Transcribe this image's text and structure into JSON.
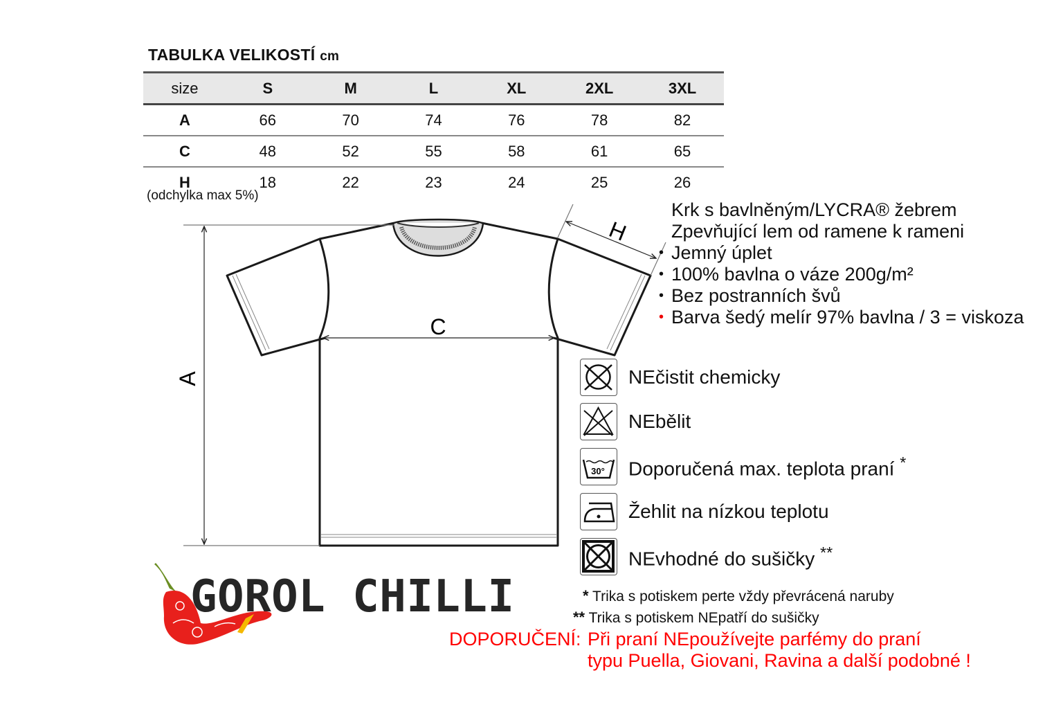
{
  "title": {
    "main": "TABULKA VELIKOSTÍ",
    "unit": "cm"
  },
  "size_table": {
    "header": [
      "size",
      "S",
      "M",
      "L",
      "XL",
      "2XL",
      "3XL"
    ],
    "rows": [
      {
        "label": "A",
        "values": [
          "66",
          "70",
          "74",
          "76",
          "78",
          "82"
        ]
      },
      {
        "label": "C",
        "values": [
          "48",
          "52",
          "55",
          "58",
          "61",
          "65"
        ]
      },
      {
        "label": "H",
        "values": [
          "18",
          "22",
          "23",
          "24",
          "25",
          "26"
        ]
      }
    ],
    "tolerance_note": "(odchylka max 5%)"
  },
  "diagram": {
    "label_a": "A",
    "label_c": "C",
    "label_h": "H"
  },
  "features": [
    "Krk s bavlněným/LYCRA® žebrem",
    "Zpevňující lem od ramene k rameni",
    "Jemný úplet",
    "100% bavlna o váze 200g/m²",
    "Bez postranních švů",
    "Barva šedý melír 97% bavlna / 3 = viskoza"
  ],
  "care": [
    {
      "icon": "no-dry-clean-icon",
      "label": "NEčistit chemicky"
    },
    {
      "icon": "no-bleach-icon",
      "label": "NEbělit"
    },
    {
      "icon": "wash-30-icon",
      "label": "Doporučená max. teplota praní",
      "mark": "*",
      "temp": "30°"
    },
    {
      "icon": "iron-low-icon",
      "label": "Žehlit na nízkou teplotu"
    },
    {
      "icon": "no-tumble-dry-icon",
      "label": "NEvhodné do sušičky",
      "mark": "**"
    }
  ],
  "notes": [
    {
      "mark": "*",
      "text": "Trika s potiskem perte vždy převrácená naruby"
    },
    {
      "mark": "**",
      "text": "Trika s potiskem NEpatří do sušičky"
    }
  ],
  "recommendation": {
    "head": "DOPORUČENÍ:",
    "line1": "Při praní NEpoužívejte parfémy do praní",
    "line2": "typu Puella, Giovani, Ravina a další podobné !"
  },
  "logo": {
    "text": "GOROL CHILLI"
  },
  "colors": {
    "accent_red": "#ff0000",
    "header_bg": "#e8e8e8",
    "chili_red": "#e8201c",
    "chili_green": "#6b8e23",
    "chili_yellow": "#f5b800"
  }
}
